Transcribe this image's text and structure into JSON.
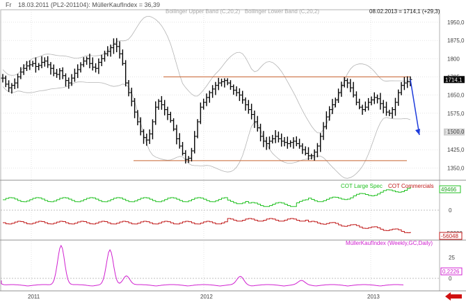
{
  "header": {
    "prefix": "Fr",
    "info": "18.03.2011 (PL2-201104): MüllerKaufIndex = 36,39",
    "indicators": "Bollinger Upper Band (C,20,2)   Bollinger Lower Band (C,20,2)",
    "last": "08.02.2013 = 1714,1 (+29,3)"
  },
  "colors": {
    "background": "#ffffff",
    "grid": "#c8c8c8",
    "bars": "#000000",
    "bollinger": "#b4b4b4",
    "support_resistance": "#c86432",
    "arrow": "#1e3cdc",
    "cot_large": "#20c020",
    "cot_commercial": "#c01818",
    "muller": "#d020d0",
    "nav_arrow": "#d01010"
  },
  "chart_data": [
    {
      "type": "bar",
      "panel": "price",
      "y_ticks": [
        "1950,0",
        "1875,0",
        "1800",
        "1725",
        "1650,0",
        "1575,0",
        "1500,0",
        "1425,0",
        "1350,0"
      ],
      "y_tick_values": [
        1950,
        1875,
        1800,
        1725,
        1650,
        1575,
        1500,
        1425,
        1350
      ],
      "ylim": [
        1305,
        1990
      ],
      "x_ticks": [
        "2011",
        "2012",
        "2013"
      ],
      "last_label": "1714,1",
      "bollinger_lower_label": "1498,0",
      "resistance": 1725,
      "support": 1380,
      "series": {
        "close": [
          1720,
          1695,
          1680,
          1690,
          1700,
          1725,
          1745,
          1760,
          1770,
          1775,
          1780,
          1768,
          1772,
          1785,
          1790,
          1775,
          1760,
          1740,
          1735,
          1750,
          1730,
          1710,
          1700,
          1720,
          1740,
          1755,
          1775,
          1790,
          1800,
          1780,
          1765,
          1760,
          1785,
          1800,
          1820,
          1830,
          1845,
          1860,
          1850,
          1820,
          1780,
          1700,
          1660,
          1625,
          1580,
          1540,
          1500,
          1475,
          1465,
          1490,
          1540,
          1600,
          1625,
          1610,
          1590,
          1570,
          1545,
          1510,
          1470,
          1440,
          1410,
          1385,
          1390,
          1420,
          1480,
          1540,
          1600,
          1620,
          1640,
          1660,
          1675,
          1690,
          1700,
          1705,
          1710,
          1700,
          1685,
          1670,
          1660,
          1650,
          1630,
          1610,
          1590,
          1570,
          1540,
          1515,
          1480,
          1460,
          1450,
          1460,
          1470,
          1480,
          1470,
          1460,
          1455,
          1450,
          1455,
          1460,
          1450,
          1440,
          1425,
          1410,
          1400,
          1400,
          1415,
          1440,
          1480,
          1520,
          1560,
          1590,
          1610,
          1630,
          1660,
          1690,
          1710,
          1700,
          1680,
          1650,
          1620,
          1600,
          1590,
          1600,
          1620,
          1630,
          1640,
          1635,
          1615,
          1600,
          1580,
          1575,
          1590,
          1620,
          1660,
          1690,
          1700,
          1705,
          1714
        ]
      }
    },
    {
      "type": "line",
      "panel": "cot",
      "y_ticks": [
        "0"
      ],
      "legend": [
        "COT Large Spec",
        "COT Commercials"
      ],
      "large_spec_label": "49466",
      "commercials_label": "-56048",
      "extra_label": "-50000"
    },
    {
      "type": "line",
      "panel": "muller",
      "y_ticks": [
        "25",
        "0"
      ],
      "legend": [
        "MüllerKaufIndex (Weekly,GC,Daily)"
      ],
      "last_label": "0,2226"
    }
  ]
}
